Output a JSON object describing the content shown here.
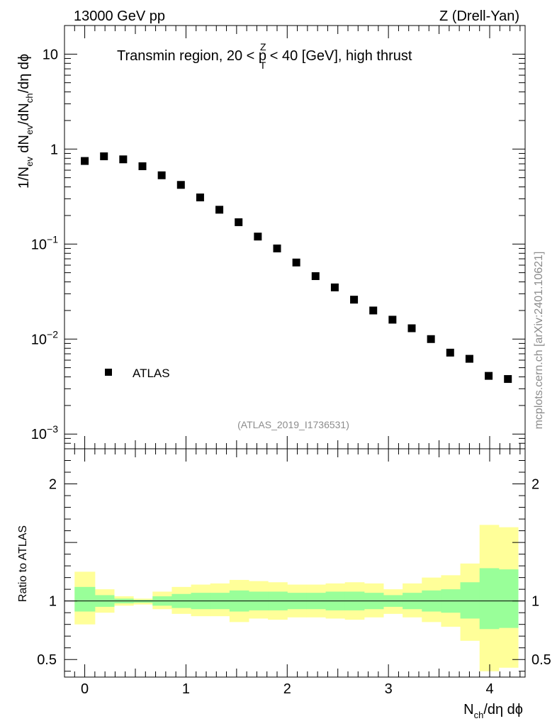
{
  "header": {
    "left": "13000 GeV pp",
    "right": "Z (Drell-Yan)"
  },
  "watermark": "mcplots.cern.ch [arXiv:2401.10621]",
  "chart_data": [
    {
      "type": "scatter",
      "panel": "main",
      "title_parts": {
        "prefix": "Transmin region, 20 < p",
        "sup": "Z",
        "sub": "T",
        "suffix": " < 40 [GeV], high thrust"
      },
      "ylabel_parts": [
        "1/N",
        "ev",
        " dN",
        "ev",
        "/dN",
        "ch",
        "/dη dϕ"
      ],
      "yscale": "log",
      "ylim": [
        0.0007,
        20
      ],
      "xlim": [
        -0.2,
        4.35
      ],
      "yticks": [
        {
          "value": 10,
          "base": "10",
          "exp": ""
        },
        {
          "value": 1,
          "base": "1",
          "exp": ""
        },
        {
          "value": 0.1,
          "base": "10",
          "exp": "−1"
        },
        {
          "value": 0.01,
          "base": "10",
          "exp": "−2"
        },
        {
          "value": 0.001,
          "base": "10",
          "exp": "−3"
        }
      ],
      "legend": {
        "label": "ATLAS",
        "position": "lower-left"
      },
      "analysis_label": "(ATLAS_2019_I1736531)",
      "series": [
        {
          "name": "ATLAS",
          "marker": "square",
          "color": "#000000",
          "x": [
            0.0,
            0.19,
            0.38,
            0.57,
            0.76,
            0.95,
            1.14,
            1.33,
            1.52,
            1.71,
            1.9,
            2.09,
            2.28,
            2.47,
            2.66,
            2.85,
            3.04,
            3.23,
            3.42,
            3.61,
            3.8,
            3.99,
            4.18
          ],
          "y": [
            0.75,
            0.84,
            0.78,
            0.66,
            0.53,
            0.42,
            0.31,
            0.23,
            0.17,
            0.12,
            0.09,
            0.064,
            0.046,
            0.035,
            0.026,
            0.02,
            0.016,
            0.013,
            0.01,
            0.0072,
            0.0062,
            0.0041,
            0.0038
          ]
        }
      ]
    },
    {
      "type": "area",
      "panel": "ratio",
      "ylabel": "Ratio to ATLAS",
      "xlabel_parts": [
        "N",
        "ch",
        "/dη dϕ"
      ],
      "ylim": [
        0.35,
        2.3
      ],
      "xlim": [
        -0.2,
        4.35
      ],
      "xticks": [
        0,
        1,
        2,
        3,
        4
      ],
      "yticks": [
        0.5,
        1,
        2
      ],
      "reference_line": 1,
      "bin_edges": [
        -0.1,
        0.1,
        0.29,
        0.48,
        0.67,
        0.86,
        1.05,
        1.24,
        1.43,
        1.62,
        1.81,
        2.0,
        2.19,
        2.38,
        2.57,
        2.76,
        2.95,
        3.14,
        3.33,
        3.52,
        3.71,
        3.9,
        4.09,
        4.28
      ],
      "bands": [
        {
          "name": "total uncertainty",
          "color": "#ffff99",
          "low": [
            0.8,
            0.9,
            0.96,
            0.97,
            0.93,
            0.89,
            0.87,
            0.87,
            0.82,
            0.85,
            0.84,
            0.86,
            0.86,
            0.85,
            0.84,
            0.86,
            0.89,
            0.86,
            0.82,
            0.78,
            0.66,
            0.4,
            0.43
          ],
          "high": [
            1.25,
            1.1,
            1.04,
            1.02,
            1.08,
            1.12,
            1.14,
            1.15,
            1.18,
            1.17,
            1.16,
            1.14,
            1.14,
            1.15,
            1.16,
            1.15,
            1.1,
            1.15,
            1.2,
            1.22,
            1.32,
            1.65,
            1.63
          ]
        },
        {
          "name": "statistical uncertainty",
          "color": "#99ff99",
          "low": [
            0.91,
            0.95,
            0.98,
            0.985,
            0.96,
            0.94,
            0.93,
            0.93,
            0.91,
            0.92,
            0.92,
            0.93,
            0.93,
            0.92,
            0.92,
            0.93,
            0.95,
            0.93,
            0.91,
            0.9,
            0.85,
            0.76,
            0.77
          ],
          "high": [
            1.12,
            1.05,
            1.02,
            1.01,
            1.04,
            1.06,
            1.07,
            1.07,
            1.09,
            1.08,
            1.08,
            1.07,
            1.07,
            1.08,
            1.08,
            1.07,
            1.05,
            1.07,
            1.09,
            1.1,
            1.16,
            1.28,
            1.27
          ]
        }
      ]
    }
  ]
}
